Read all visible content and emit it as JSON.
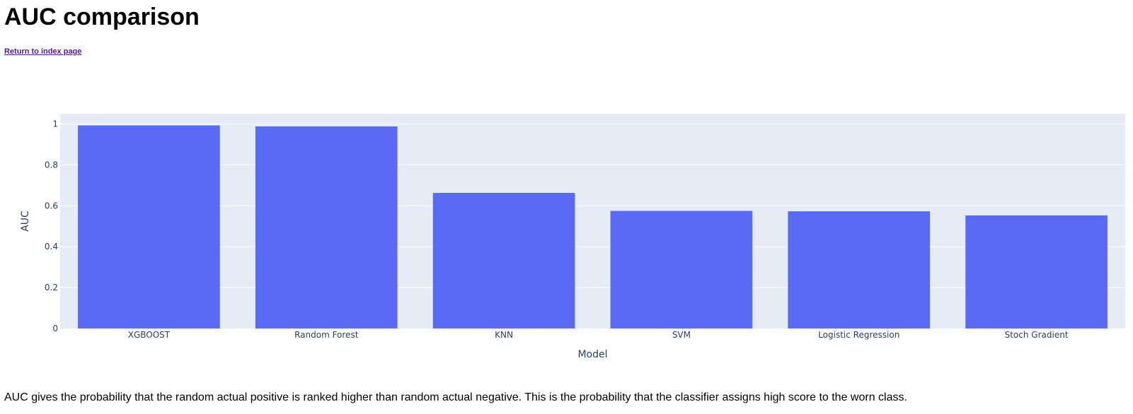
{
  "page": {
    "title": "AUC comparison",
    "index_link": "Return to index page",
    "description": "AUC gives the probability that the random actual positive is ranked higher than random actual negative. This is the probability that the classifier assigns high score to the worn class."
  },
  "chart_data": {
    "type": "bar",
    "title": "",
    "categories": [
      "XGBOOST",
      "Random Forest",
      "KNN",
      "SVM",
      "Logistic Regression",
      "Stoch Gradient"
    ],
    "values": [
      0.993,
      0.988,
      0.663,
      0.575,
      0.573,
      0.553
    ],
    "xlabel": "Model",
    "ylabel": "AUC",
    "ylim": [
      0,
      1.05
    ],
    "yticks": [
      0,
      0.2,
      0.4,
      0.6,
      0.8,
      1
    ],
    "ytick_labels": [
      "0",
      "0.2",
      "0.4",
      "0.6",
      "0.8",
      "1"
    ],
    "grid": true,
    "legend": "none",
    "colors": {
      "bar": "#5a6af4",
      "plot_background": "#e5ecf6",
      "grid": "#ffffff",
      "text": "#2a3f5f"
    }
  }
}
